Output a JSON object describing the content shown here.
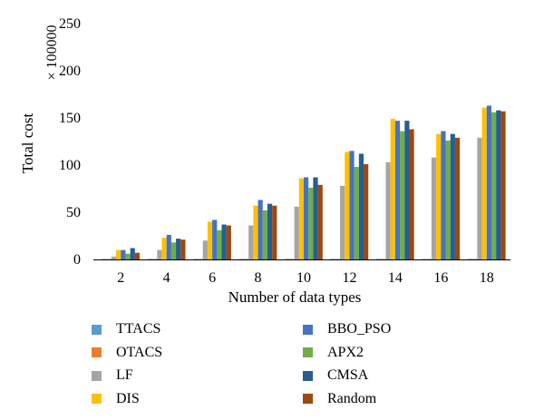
{
  "chart_data": {
    "type": "bar",
    "title": "",
    "xlabel": "Number of data types",
    "ylabel": "Total cost",
    "yscale_label": "× 100000",
    "ylim": [
      0,
      250
    ],
    "yticks": [
      "0",
      "50",
      "100",
      "150",
      "200",
      "250"
    ],
    "categories": [
      "2",
      "4",
      "6",
      "8",
      "10",
      "12",
      "14",
      "16",
      "18"
    ],
    "legend_position": "bottom",
    "grid": false,
    "series": [
      {
        "name": "TTACS",
        "color": "#5b9bd5",
        "values": [
          0.5,
          0.5,
          0.5,
          0.5,
          0.5,
          0.5,
          0.5,
          0.5,
          0.5
        ]
      },
      {
        "name": "OTACS",
        "color": "#ed7d31",
        "values": [
          0.5,
          0.5,
          0.5,
          0.5,
          0.5,
          0.5,
          0.5,
          0.5,
          0.5
        ]
      },
      {
        "name": "LF",
        "color": "#a5a5a5",
        "values": [
          3,
          10,
          20,
          36,
          56,
          78,
          103,
          108,
          129
        ]
      },
      {
        "name": "DIS",
        "color": "#ffc000",
        "values": [
          10,
          23,
          40,
          57,
          86,
          114,
          149,
          133,
          161
        ]
      },
      {
        "name": "BBO_PSO",
        "color": "#4472c4",
        "values": [
          10,
          26,
          42,
          63,
          87,
          115,
          147,
          136,
          163
        ]
      },
      {
        "name": "APX2",
        "color": "#70ad47",
        "values": [
          6,
          18,
          31,
          52,
          76,
          98,
          136,
          126,
          156
        ]
      },
      {
        "name": "CMSA",
        "color": "#255e91",
        "values": [
          12,
          22,
          37,
          59,
          87,
          112,
          147,
          133,
          158
        ]
      },
      {
        "name": "Random",
        "color": "#9e480e",
        "values": [
          7,
          21,
          36,
          57,
          79,
          101,
          138,
          129,
          157
        ]
      }
    ]
  },
  "legend_items": [
    {
      "label": "TTACS",
      "color": "#5b9bd5"
    },
    {
      "label": "OTACS",
      "color": "#ed7d31"
    },
    {
      "label": "LF",
      "color": "#a5a5a5"
    },
    {
      "label": "DIS",
      "color": "#ffc000"
    },
    {
      "label": "BBO_PSO",
      "color": "#4472c4"
    },
    {
      "label": "APX2",
      "color": "#70ad47"
    },
    {
      "label": "CMSA",
      "color": "#255e91"
    },
    {
      "label": "Random",
      "color": "#9e480e"
    }
  ]
}
